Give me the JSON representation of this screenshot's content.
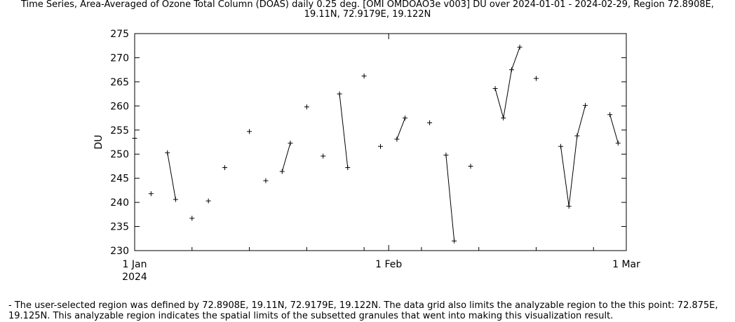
{
  "chart_data": {
    "type": "line",
    "title_line1": "Time Series, Area-Averaged of Ozone Total Column (DOAS) daily 0.25 deg. [OMI OMDOAO3e v003] DU over 2024-01-01 - 2024-02-29, Region 72.8908E,",
    "title_line2": "19.11N, 72.9179E, 19.122N",
    "xlabel": "",
    "ylabel": "DU",
    "ylim": [
      230,
      275
    ],
    "yticks": [
      "230",
      "235",
      "240",
      "245",
      "250",
      "255",
      "260",
      "265",
      "270",
      "275"
    ],
    "xlim": [
      "2024-01-01",
      "2024-03-01"
    ],
    "xticks": [
      {
        "date": "2024-01-01",
        "label": "1 Jan",
        "sublabel": "2024"
      },
      {
        "date": "2024-02-01",
        "label": "1 Feb",
        "sublabel": ""
      },
      {
        "date": "2024-03-01",
        "label": "1 Mar",
        "sublabel": ""
      }
    ],
    "grid": false,
    "marker": "+",
    "line_color": "#000000",
    "series": [
      {
        "points": [
          {
            "x": "2024-01-01",
            "y": 253.3
          },
          {
            "x": "2024-01-03",
            "y": 241.8
          },
          {
            "x": "2024-01-05",
            "y": 250.3
          },
          {
            "x": "2024-01-06",
            "y": 240.6
          },
          {
            "x": "2024-01-08",
            "y": 236.7
          },
          {
            "x": "2024-01-10",
            "y": 240.3
          },
          {
            "x": "2024-01-12",
            "y": 247.2
          },
          {
            "x": "2024-01-15",
            "y": 254.7
          },
          {
            "x": "2024-01-17",
            "y": 244.5
          },
          {
            "x": "2024-01-19",
            "y": 246.4
          },
          {
            "x": "2024-01-20",
            "y": 252.3
          },
          {
            "x": "2024-01-22",
            "y": 259.8
          },
          {
            "x": "2024-01-24",
            "y": 249.6
          },
          {
            "x": "2024-01-26",
            "y": 262.5
          },
          {
            "x": "2024-01-27",
            "y": 247.2
          },
          {
            "x": "2024-01-29",
            "y": 266.2
          },
          {
            "x": "2024-01-31",
            "y": 251.6
          },
          {
            "x": "2024-02-02",
            "y": 253.1
          },
          {
            "x": "2024-02-03",
            "y": 257.5
          },
          {
            "x": "2024-02-06",
            "y": 256.5
          },
          {
            "x": "2024-02-08",
            "y": 249.8
          },
          {
            "x": "2024-02-09",
            "y": 232.0
          },
          {
            "x": "2024-02-11",
            "y": 247.5
          },
          {
            "x": "2024-02-14",
            "y": 263.6
          },
          {
            "x": "2024-02-15",
            "y": 257.5
          },
          {
            "x": "2024-02-16",
            "y": 267.5
          },
          {
            "x": "2024-02-17",
            "y": 272.2
          },
          {
            "x": "2024-02-19",
            "y": 265.7
          },
          {
            "x": "2024-02-22",
            "y": 251.6
          },
          {
            "x": "2024-02-23",
            "y": 239.2
          },
          {
            "x": "2024-02-24",
            "y": 253.8
          },
          {
            "x": "2024-02-25",
            "y": 260.1
          },
          {
            "x": "2024-02-28",
            "y": 258.2
          },
          {
            "x": "2024-02-29",
            "y": 252.3
          }
        ]
      }
    ]
  },
  "footnote": "- The user-selected region was defined by 72.8908E, 19.11N, 72.9179E, 19.122N. The data grid also limits the analyzable region to the this point: 72.875E, 19.125N. This analyzable region indicates the spatial limits of the subsetted granules that went into making this visualization result."
}
